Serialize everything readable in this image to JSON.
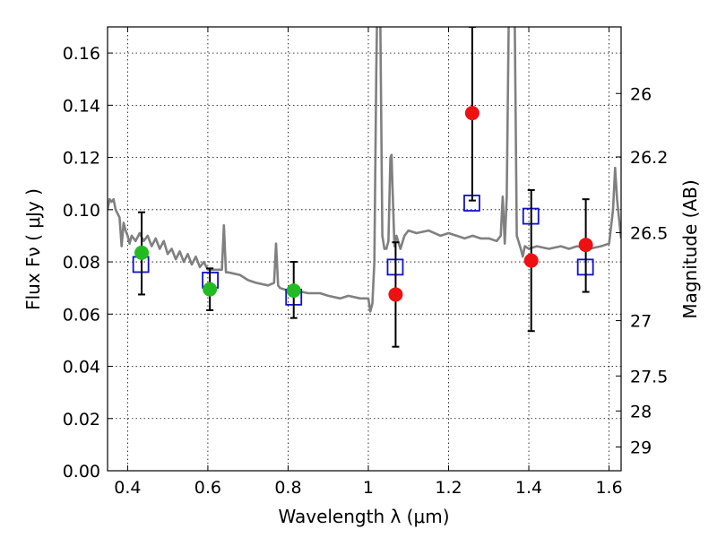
{
  "chart_data": {
    "type": "scatter",
    "xlabel": "Wavelength  λ (μm)",
    "ylabel": "Flux  Fν  ( μJy )",
    "y2label": "Magnitude (AB)",
    "xlim": [
      0.35,
      1.63
    ],
    "ylim": [
      0.0,
      0.17
    ],
    "grid": true,
    "x_ticks": [
      {
        "value": 0.4,
        "label": "0.4"
      },
      {
        "value": 0.6,
        "label": "0.6"
      },
      {
        "value": 0.8,
        "label": "0.8"
      },
      {
        "value": 1.0,
        "label": "1"
      },
      {
        "value": 1.2,
        "label": "1.2"
      },
      {
        "value": 1.4,
        "label": "1.4"
      },
      {
        "value": 1.6,
        "label": "1.6"
      }
    ],
    "y_ticks": [
      {
        "value": 0.0,
        "label": "0.00"
      },
      {
        "value": 0.02,
        "label": "0.02"
      },
      {
        "value": 0.04,
        "label": "0.04"
      },
      {
        "value": 0.06,
        "label": "0.06"
      },
      {
        "value": 0.08,
        "label": "0.08"
      },
      {
        "value": 0.1,
        "label": "0.10"
      },
      {
        "value": 0.12,
        "label": "0.12"
      },
      {
        "value": 0.14,
        "label": "0.14"
      },
      {
        "value": 0.16,
        "label": "0.16"
      }
    ],
    "y2_ticks": [
      {
        "flux": 0.1445,
        "label": "26"
      },
      {
        "flux": 0.1202,
        "label": "26.2"
      },
      {
        "flux": 0.0912,
        "label": "26.5"
      },
      {
        "flux": 0.0575,
        "label": "27"
      },
      {
        "flux": 0.0363,
        "label": "27.5"
      },
      {
        "flux": 0.0229,
        "label": "28"
      },
      {
        "flux": 0.0091,
        "label": "29"
      }
    ],
    "colors": {
      "model": "#808080",
      "optical": "#22bb22",
      "nir": "#ee1111",
      "model_band": "#1111cc",
      "errorbar": "#000000"
    },
    "series": [
      {
        "role": "model_spectrum",
        "style": "line",
        "x": [
          0.35,
          0.355,
          0.36,
          0.365,
          0.37,
          0.38,
          0.385,
          0.39,
          0.395,
          0.4,
          0.405,
          0.41,
          0.42,
          0.43,
          0.44,
          0.45,
          0.46,
          0.47,
          0.48,
          0.49,
          0.5,
          0.51,
          0.52,
          0.53,
          0.54,
          0.55,
          0.56,
          0.57,
          0.58,
          0.59,
          0.6,
          0.62,
          0.635,
          0.64,
          0.645,
          0.65,
          0.68,
          0.7,
          0.72,
          0.75,
          0.765,
          0.77,
          0.775,
          0.78,
          0.8,
          0.82,
          0.85,
          0.88,
          0.9,
          0.93,
          0.95,
          0.98,
          1.0,
          1.005,
          1.01,
          1.015,
          1.02,
          1.022,
          1.025,
          1.03,
          1.035,
          1.04,
          1.045,
          1.05,
          1.055,
          1.058,
          1.06,
          1.065,
          1.07,
          1.08,
          1.09,
          1.1,
          1.12,
          1.15,
          1.18,
          1.2,
          1.22,
          1.24,
          1.26,
          1.28,
          1.3,
          1.32,
          1.33,
          1.335,
          1.34,
          1.345,
          1.35,
          1.36,
          1.365,
          1.37,
          1.38,
          1.385,
          1.39,
          1.4,
          1.42,
          1.45,
          1.48,
          1.5,
          1.52,
          1.55,
          1.58,
          1.6,
          1.61,
          1.615,
          1.62,
          1.63
        ],
        "y": [
          0.1,
          0.104,
          0.103,
          0.104,
          0.1,
          0.097,
          0.086,
          0.095,
          0.092,
          0.09,
          0.087,
          0.09,
          0.088,
          0.091,
          0.088,
          0.09,
          0.086,
          0.089,
          0.085,
          0.088,
          0.083,
          0.085,
          0.081,
          0.084,
          0.08,
          0.083,
          0.079,
          0.082,
          0.078,
          0.08,
          0.077,
          0.077,
          0.077,
          0.094,
          0.076,
          0.076,
          0.075,
          0.073,
          0.072,
          0.071,
          0.072,
          0.087,
          0.071,
          0.07,
          0.069,
          0.069,
          0.068,
          0.068,
          0.067,
          0.066,
          0.067,
          0.066,
          0.066,
          0.061,
          0.064,
          0.08,
          0.155,
          0.175,
          0.175,
          0.17,
          0.09,
          0.085,
          0.085,
          0.088,
          0.12,
          0.121,
          0.11,
          0.086,
          0.09,
          0.085,
          0.09,
          0.092,
          0.091,
          0.092,
          0.09,
          0.091,
          0.09,
          0.089,
          0.09,
          0.089,
          0.089,
          0.088,
          0.09,
          0.105,
          0.087,
          0.105,
          0.175,
          0.175,
          0.17,
          0.09,
          0.085,
          0.082,
          0.086,
          0.085,
          0.086,
          0.085,
          0.086,
          0.085,
          0.086,
          0.085,
          0.086,
          0.087,
          0.1,
          0.116,
          0.104,
          0.089
        ]
      },
      {
        "role": "observed_optical",
        "style": "filled_circle",
        "x": [
          0.435,
          0.605,
          0.814
        ],
        "y": [
          0.0835,
          0.0695,
          0.069
        ],
        "yerr_low": [
          0.0675,
          0.0615,
          0.0585
        ],
        "yerr_high": [
          0.099,
          0.0775,
          0.08
        ]
      },
      {
        "role": "observed_nir",
        "style": "filled_circle",
        "x": [
          1.068,
          1.259,
          1.406,
          1.542
        ],
        "y": [
          0.0675,
          0.137,
          0.0805,
          0.0865
        ],
        "yerr_low": [
          0.0475,
          0.1035,
          0.0535,
          0.0685
        ],
        "yerr_high": [
          0.0875,
          0.17,
          0.1075,
          0.104
        ]
      },
      {
        "role": "model_photometry",
        "style": "open_square",
        "x": [
          0.433,
          0.606,
          0.814,
          1.067,
          1.258,
          1.405,
          1.541
        ],
        "y": [
          0.079,
          0.073,
          0.0665,
          0.078,
          0.1025,
          0.0975,
          0.078
        ]
      }
    ]
  }
}
